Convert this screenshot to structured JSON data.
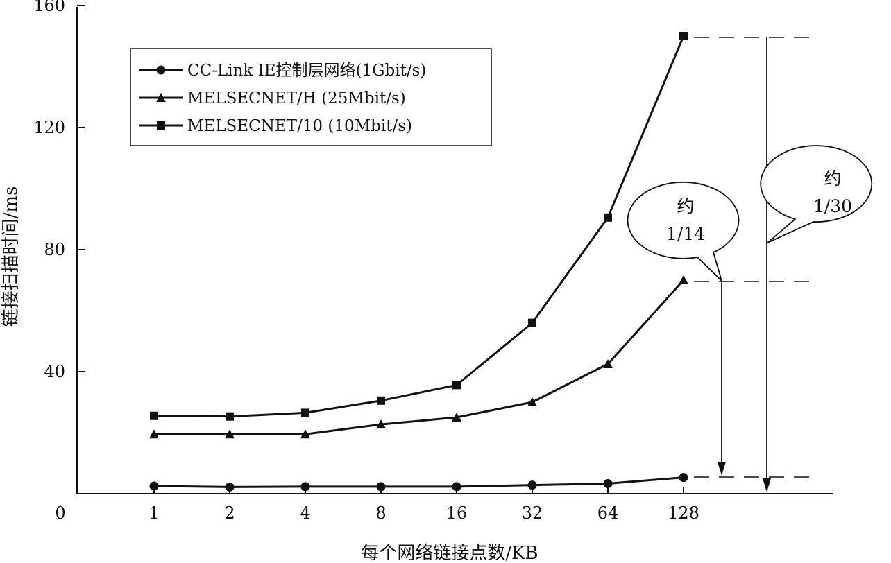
{
  "chart_data": {
    "type": "line",
    "xlabel": "每个网络链接点数/KB",
    "ylabel": "链接扫描时间/ms",
    "categories": [
      "1",
      "2",
      "4",
      "8",
      "16",
      "32",
      "64",
      "128"
    ],
    "origin_label": "0",
    "yticks": [
      "40",
      "80",
      "120",
      "160"
    ],
    "ylim": [
      0,
      160
    ],
    "grid": false,
    "legend_position": "top-left",
    "series": [
      {
        "name": "CC-Link IE控制层网络(1Gbit/s)",
        "marker": "circle",
        "values": [
          2.5,
          2.2,
          2.3,
          2.3,
          2.3,
          2.8,
          3.3,
          5.3
        ]
      },
      {
        "name": "MELSECNET/H (25Mbit/s)",
        "marker": "triangle",
        "values": [
          19.5,
          19.5,
          19.5,
          22.7,
          25,
          30,
          42.5,
          70
        ]
      },
      {
        "name": "MELSECNET/10 (10Mbit/s)",
        "marker": "square",
        "values": [
          25.5,
          25.3,
          26.5,
          30.5,
          35.6,
          56,
          90.5,
          150
        ]
      }
    ],
    "annotations": [
      {
        "line1": "约",
        "line2": "1/14"
      },
      {
        "line1": "约",
        "line2": "1/30"
      }
    ]
  }
}
